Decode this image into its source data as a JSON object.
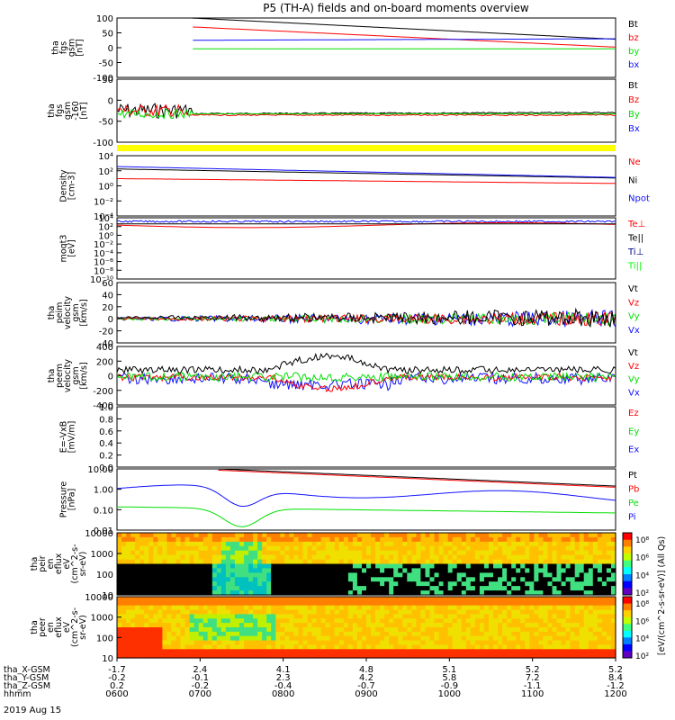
{
  "title": "P5 (TH-A) fields and on-board moments overview",
  "colors": {
    "black": "#000000",
    "red": "#ff0000",
    "green": "#00e000",
    "blue": "#1010ff",
    "yellow": "#ffff00",
    "darkblue": "#000090",
    "lime": "#00ff00"
  },
  "chart_data": [
    {
      "id": "fgs_gsm",
      "type": "line",
      "ylabel": [
        "tha",
        "fgs",
        "gsm",
        "[nT]"
      ],
      "ylim": [
        -100,
        100
      ],
      "yticks": [
        "100",
        "50",
        "0",
        "-50",
        "-100"
      ],
      "series": [
        {
          "name": "Bt",
          "color": "black"
        },
        {
          "name": "bz",
          "color": "red"
        },
        {
          "name": "by",
          "color": "green"
        },
        {
          "name": "bx",
          "color": "blue"
        }
      ]
    },
    {
      "id": "fgs_gse",
      "type": "line",
      "ylabel": [
        "tha",
        "fgs",
        "gsm",
        "-160",
        "[nT]"
      ],
      "ylim": [
        -120,
        70
      ],
      "yticks": [
        "50",
        "0",
        "-50",
        "-100"
      ],
      "series": [
        {
          "name": "Bt",
          "color": "black"
        },
        {
          "name": "Bz",
          "color": "red"
        },
        {
          "name": "By",
          "color": "green"
        },
        {
          "name": "Bx",
          "color": "blue"
        }
      ]
    },
    {
      "id": "density",
      "type": "line",
      "ylabel": [
        "Density",
        "[cm-3]"
      ],
      "log": true,
      "yticks": [
        "10⁴",
        "10²",
        "10⁰",
        "10⁻²",
        "10⁻⁴"
      ],
      "series": [
        {
          "name": "Ne",
          "color": "red"
        },
        {
          "name": "Ni",
          "color": "black"
        },
        {
          "name": "Npot",
          "color": "blue"
        }
      ]
    },
    {
      "id": "temperature",
      "type": "line",
      "ylabel": [
        "moqt3",
        "[eV]"
      ],
      "log": true,
      "yticks": [
        "10⁴",
        "10²",
        "10⁰",
        "10⁻²",
        "10⁻⁴",
        "10⁻⁶",
        "10⁻⁸",
        "10⁻¹⁰"
      ],
      "series": [
        {
          "name": "Te⊥",
          "color": "red"
        },
        {
          "name": "Te||",
          "color": "black"
        },
        {
          "name": "Ti⊥",
          "color": "darkblue"
        },
        {
          "name": "Ti||",
          "color": "lime"
        }
      ]
    },
    {
      "id": "peim_velocity",
      "type": "line",
      "ylabel": [
        "tha",
        "peim",
        "velocity",
        "gsm",
        "[km/s]"
      ],
      "ylim": [
        -40,
        60
      ],
      "yticks": [
        "60",
        "40",
        "20",
        "0",
        "-20",
        "-40"
      ],
      "series": [
        {
          "name": "Vt",
          "color": "black"
        },
        {
          "name": "Vz",
          "color": "red"
        },
        {
          "name": "Vy",
          "color": "green"
        },
        {
          "name": "Vx",
          "color": "blue"
        }
      ]
    },
    {
      "id": "peem_velocity",
      "type": "line",
      "ylabel": [
        "tha",
        "peem",
        "velocity",
        "gsm",
        "[km/s]"
      ],
      "ylim": [
        -400,
        400
      ],
      "yticks": [
        "400",
        "200",
        "0",
        "-200",
        "-400"
      ],
      "series": [
        {
          "name": "Vt",
          "color": "black"
        },
        {
          "name": "Vz",
          "color": "red"
        },
        {
          "name": "Vy",
          "color": "green"
        },
        {
          "name": "Vx",
          "color": "blue"
        }
      ]
    },
    {
      "id": "efield",
      "type": "line",
      "ylabel": [
        "E=-VxB",
        "[mV/m]"
      ],
      "ylim": [
        0,
        1
      ],
      "yticks": [
        "1.0",
        "0.8",
        "0.6",
        "0.4",
        "0.2",
        "0.0"
      ],
      "series": [
        {
          "name": "Ez",
          "color": "red"
        },
        {
          "name": "Ey",
          "color": "green"
        },
        {
          "name": "Ex",
          "color": "blue"
        }
      ]
    },
    {
      "id": "pressure",
      "type": "line",
      "ylabel": [
        "Pressure",
        "[nPa]"
      ],
      "log": true,
      "yticks": [
        "10.00",
        "1.00",
        "0.10",
        "0.01"
      ],
      "series": [
        {
          "name": "Pt",
          "color": "black"
        },
        {
          "name": "Pb",
          "color": "red"
        },
        {
          "name": "Pe",
          "color": "green"
        },
        {
          "name": "Pi",
          "color": "blue"
        }
      ]
    },
    {
      "id": "peir_spec",
      "type": "heatmap",
      "ylabel": [
        "tha",
        "peir",
        "en",
        "eflux",
        "eV",
        "(cm^2-s-",
        "sr-eV)"
      ],
      "yticks": [
        "10000",
        "1000",
        "100",
        "10"
      ]
    },
    {
      "id": "peer_spec",
      "type": "heatmap",
      "ylabel": [
        "tha",
        "peer",
        "en",
        "eflux",
        "eV",
        "(cm^2-s-",
        "sr-eV)"
      ],
      "yticks": [
        "10000",
        "1000",
        "100",
        "10"
      ]
    }
  ],
  "colorbar": {
    "label": "[eV/(cm^2-s-sr-eV)] (All Qs)",
    "ticks_top": [
      "10⁸",
      "10⁶",
      "10⁴",
      "10²"
    ],
    "ticks_bottom": [
      "10⁸",
      "10⁶",
      "10⁴",
      "10²"
    ]
  },
  "xaxis": {
    "rows": [
      {
        "label": "tha_X-GSM",
        "values": [
          "-1.7",
          "2.4",
          "4.1",
          "4.8",
          "5.1",
          "5.2",
          "5.2"
        ]
      },
      {
        "label": "tha_Y-GSM",
        "values": [
          "-0.2",
          "-0.1",
          "2.3",
          "4.2",
          "5.8",
          "7.2",
          "8.4"
        ]
      },
      {
        "label": "tha_Z-GSM",
        "values": [
          "0.2",
          "-0.2",
          "-0.4",
          "-0.7",
          "-0.9",
          "-1.1",
          "-1.2"
        ]
      },
      {
        "label": "hhmm",
        "values": [
          "0600",
          "0700",
          "0800",
          "0900",
          "1000",
          "1100",
          "1200"
        ]
      }
    ],
    "date": "2019 Aug 15"
  }
}
